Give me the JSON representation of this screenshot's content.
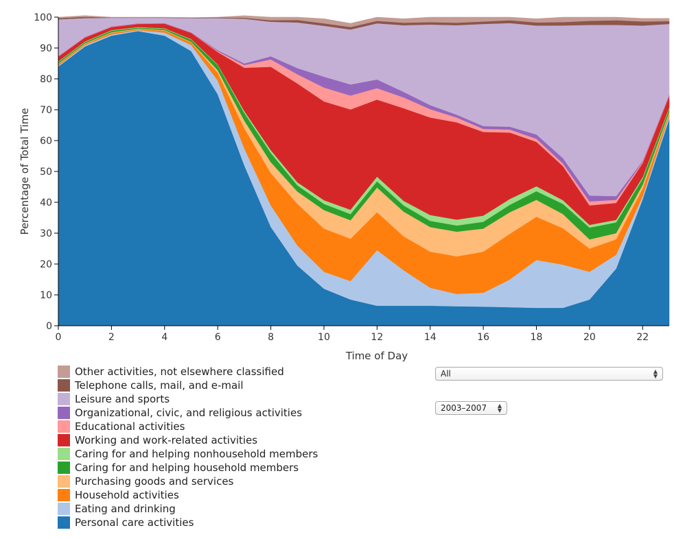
{
  "controls": {
    "activity_select": {
      "selected": "All"
    },
    "period_select": {
      "selected": "2003–2007"
    }
  },
  "chart_data": {
    "type": "area",
    "stacked": true,
    "xlabel": "Time of Day",
    "ylabel": "Percentage of Total Time",
    "xlim": [
      0,
      23
    ],
    "ylim": [
      0,
      100
    ],
    "xticks": [
      0,
      2,
      4,
      6,
      8,
      10,
      12,
      14,
      16,
      18,
      20,
      22
    ],
    "yticks": [
      0,
      10,
      20,
      30,
      40,
      50,
      60,
      70,
      80,
      90,
      100
    ],
    "x": [
      0,
      1,
      2,
      3,
      4,
      5,
      6,
      7,
      8,
      9,
      10,
      11,
      12,
      13,
      14,
      15,
      16,
      17,
      18,
      19,
      20,
      21,
      22,
      23
    ],
    "legend_position": "bottom-left",
    "series": [
      {
        "name": "Personal care activities",
        "color": "#1f77b4",
        "values": [
          84,
          90.5,
          94,
          95.5,
          94,
          89,
          75,
          52,
          32,
          19.5,
          12,
          8.5,
          6.5,
          6.5,
          6.5,
          6.3,
          6.2,
          6,
          5.8,
          5.8,
          8.5,
          18.5,
          41,
          67
        ]
      },
      {
        "name": "Eating and drinking",
        "color": "#aec7e8",
        "values": [
          0.3,
          0.4,
          0.4,
          0.3,
          1,
          2,
          4.5,
          5.5,
          7,
          6.5,
          5.5,
          6,
          18,
          11.5,
          5.8,
          4,
          4.5,
          9,
          15.5,
          14,
          9,
          4.5,
          1,
          1
        ]
      },
      {
        "name": "Household activities",
        "color": "#ff7f0e",
        "values": [
          0.5,
          0.4,
          0.5,
          0.3,
          0.6,
          0.8,
          2.5,
          6.5,
          10.5,
          13.5,
          14,
          13.7,
          12.3,
          11,
          11.7,
          12.2,
          13.3,
          14.8,
          14,
          11.8,
          7.5,
          5,
          2.5,
          0.8
        ]
      },
      {
        "name": "Purchasing goods and services",
        "color": "#ffbb78",
        "values": [
          0.2,
          0.2,
          0.2,
          0.2,
          0.2,
          0.2,
          0.8,
          2.5,
          3.5,
          4,
          6,
          6,
          8,
          8,
          8,
          8,
          7.5,
          7,
          5.5,
          4.6,
          3,
          2,
          1.2,
          0.5
        ]
      },
      {
        "name": "Caring for and helping household members",
        "color": "#2ca02c",
        "values": [
          0.5,
          0.4,
          0.5,
          0.3,
          0.4,
          0.7,
          1.7,
          2.5,
          3,
          2,
          2,
          2,
          2,
          2,
          2,
          2,
          2.2,
          2.4,
          2.8,
          3.3,
          3.8,
          3.5,
          2,
          1
        ]
      },
      {
        "name": "Caring for and helping nonhousehold members",
        "color": "#98df8a",
        "values": [
          0.2,
          0.2,
          0.2,
          0.2,
          0.2,
          0.2,
          0.2,
          0.6,
          0.9,
          1,
          1.2,
          1.4,
          1.5,
          1.5,
          1.9,
          1.9,
          2,
          1.9,
          1.6,
          1.2,
          0.9,
          0.8,
          0.5,
          0.4
        ]
      },
      {
        "name": "Working and work-related activities",
        "color": "#d62728",
        "values": [
          1.5,
          1.3,
          1,
          1,
          1.5,
          2,
          4,
          14,
          27,
          32,
          32,
          32.5,
          25,
          30,
          31.6,
          31.5,
          27.1,
          21.5,
          14.4,
          11,
          6.3,
          5.5,
          4.5,
          3.8
        ]
      },
      {
        "name": "Educational activities",
        "color": "#ff9896",
        "values": [
          0.1,
          0.1,
          0.1,
          0.1,
          0.1,
          0.1,
          0.3,
          0.9,
          2.4,
          3,
          4.5,
          4.5,
          3.7,
          3.5,
          2.7,
          1.6,
          1,
          1,
          1,
          0.9,
          1.3,
          1,
          0.4,
          0.2
        ]
      },
      {
        "name": "Organizational, civic, and religious activities",
        "color": "#9467bd",
        "values": [
          0.1,
          0.1,
          0.1,
          0.1,
          0.1,
          0.1,
          0.3,
          0.5,
          1,
          2,
          3.5,
          3.6,
          2.8,
          1.8,
          1.3,
          0.9,
          0.9,
          0.9,
          1.4,
          1.7,
          1.9,
          1.2,
          0.3,
          0.2
        ]
      },
      {
        "name": "Leisure and sports",
        "color": "#c5b0d5",
        "values": [
          11.9,
          6.1,
          2.8,
          1.8,
          1.7,
          4.6,
          10.4,
          14.5,
          11.2,
          14.8,
          16.5,
          17.8,
          18.2,
          21.6,
          26.1,
          29,
          33.1,
          33.6,
          35.3,
          43,
          55.3,
          55.5,
          43.9,
          22.9
        ]
      },
      {
        "name": "Telephone calls, mail, and e-mail",
        "color": "#8c564b",
        "values": [
          0.4,
          0.4,
          0.1,
          0.1,
          0.1,
          0.1,
          0.2,
          0.3,
          0.5,
          0.8,
          0.8,
          0.8,
          0.8,
          0.8,
          0.8,
          0.8,
          0.8,
          0.9,
          1,
          1.1,
          1.3,
          1.5,
          1.3,
          0.9
        ]
      },
      {
        "name": "Other activities, not elsewhere classified",
        "color": "#c49c94",
        "values": [
          0.3,
          0.4,
          0.1,
          0.1,
          0.1,
          0.1,
          0.1,
          0.7,
          1,
          0.9,
          1.5,
          1.2,
          1.2,
          1.3,
          1.6,
          1.8,
          1.4,
          1,
          1.2,
          1.6,
          1.2,
          1,
          1,
          0.9
        ]
      }
    ]
  }
}
